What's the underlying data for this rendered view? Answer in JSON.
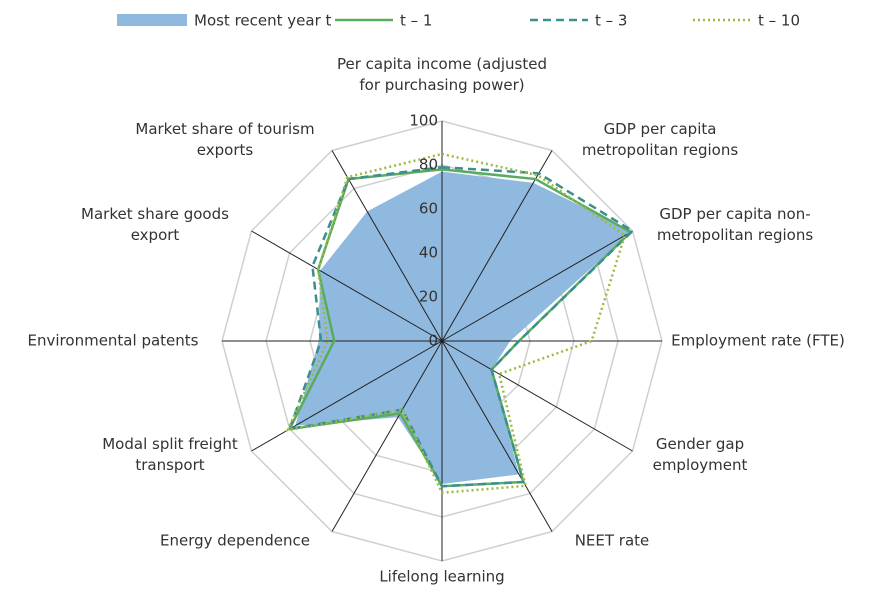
{
  "chart_data": {
    "type": "radar",
    "categories": [
      "Per capita income (adjusted for purchasing power)",
      "GDP per capita metropolitan regions",
      "GDP per capita non-metropolitan regions",
      "Employment rate (FTE)",
      "Gender gap employment",
      "NEET rate",
      "Lifelong learning",
      "Energy dependence",
      "Modal split freight transport",
      "Environmental patents",
      "Market share goods export",
      "Market share of tourism exports"
    ],
    "series": [
      {
        "name": "Most recent year t",
        "color": "#8fb9de",
        "style": "area",
        "values": [
          77,
          83,
          100,
          31,
          26,
          70,
          65,
          40,
          77,
          56,
          64,
          68
        ]
      },
      {
        "name": "t – 1",
        "color": "#5aab5f",
        "style": "solid",
        "values": [
          78,
          85,
          99,
          35,
          26,
          74,
          66,
          38,
          80,
          49,
          65,
          85
        ]
      },
      {
        "name": "t – 3",
        "color": "#3a8f8f",
        "style": "dashed",
        "values": [
          79,
          88,
          100,
          35,
          26,
          74,
          66,
          36,
          80,
          55,
          68,
          85
        ]
      },
      {
        "name": "t – 10",
        "color": "#9bbb3c",
        "style": "dotted",
        "values": [
          85,
          87,
          96,
          68,
          30,
          76,
          69,
          36,
          81,
          52,
          65,
          86
        ]
      }
    ],
    "ylim": [
      0,
      100
    ],
    "yticks": [
      0,
      20,
      40,
      60,
      80,
      100
    ],
    "grid": true
  }
}
